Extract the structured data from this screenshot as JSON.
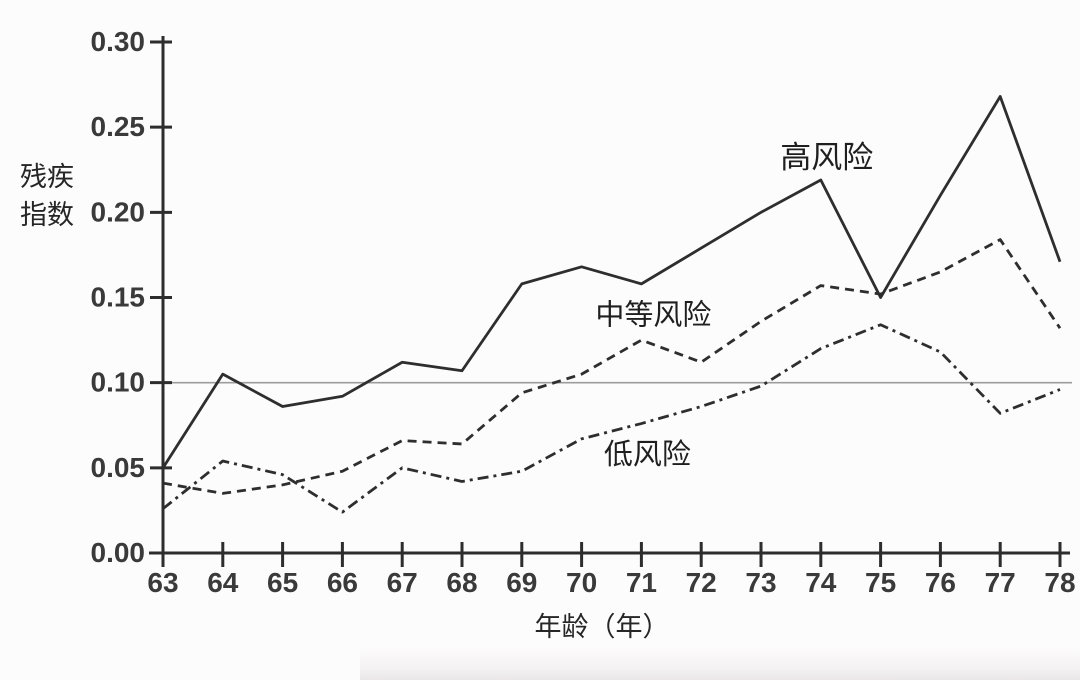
{
  "chart_data": {
    "type": "line",
    "title": "",
    "xlabel": "年龄（年）",
    "ylabel": "残疾指数",
    "ylabel_lines": [
      "残疾",
      "指数"
    ],
    "xlim": [
      63,
      78
    ],
    "ylim": [
      0,
      0.3
    ],
    "x": [
      63,
      64,
      65,
      66,
      67,
      68,
      69,
      70,
      71,
      72,
      73,
      74,
      75,
      76,
      77,
      78
    ],
    "xtick_labels": [
      "63",
      "64",
      "65",
      "66",
      "67",
      "68",
      "69",
      "70",
      "71",
      "72",
      "73",
      "74",
      "75",
      "76",
      "77",
      "78"
    ],
    "yticks": [
      0.0,
      0.05,
      0.1,
      0.15,
      0.2,
      0.25,
      0.3
    ],
    "ytick_labels": [
      "0.00",
      "0.05",
      "0.10",
      "0.15",
      "0.20",
      "0.25",
      "0.30"
    ],
    "reference_line_y": 0.1,
    "grid": "off (single thin horizontal reference line at y=0.10)",
    "legend_position": "inline text annotations next to lines",
    "line_color": "#2e2e2e",
    "axis_color": "#2d2d2d",
    "reference_line_color": "#9c9c9c",
    "series": [
      {
        "name": "高风险",
        "key": "high-risk",
        "style": "solid",
        "values": [
          0.05,
          0.105,
          0.086,
          0.092,
          0.112,
          0.107,
          0.158,
          0.168,
          0.158,
          0.179,
          0.2,
          0.219,
          0.15,
          0.21,
          0.268,
          0.171
        ],
        "label": {
          "text": "高风险",
          "x": 74.1,
          "y": 0.232,
          "font_size": 31
        }
      },
      {
        "name": "中等风险",
        "key": "medium-risk",
        "style": "dashed",
        "values": [
          0.041,
          0.035,
          0.04,
          0.048,
          0.066,
          0.064,
          0.094,
          0.105,
          0.125,
          0.112,
          0.136,
          0.157,
          0.152,
          0.165,
          0.184,
          0.132
        ],
        "label": {
          "text": "中等风险",
          "x": 71.2,
          "y": 0.14,
          "font_size": 29
        }
      },
      {
        "name": "低风险",
        "key": "low-risk",
        "style": "dashdot",
        "values": [
          0.026,
          0.054,
          0.046,
          0.024,
          0.05,
          0.042,
          0.048,
          0.067,
          0.076,
          0.086,
          0.098,
          0.12,
          0.134,
          0.118,
          0.082,
          0.096
        ],
        "label": {
          "text": "低风险",
          "x": 71.1,
          "y": 0.058,
          "font_size": 29
        }
      }
    ]
  }
}
